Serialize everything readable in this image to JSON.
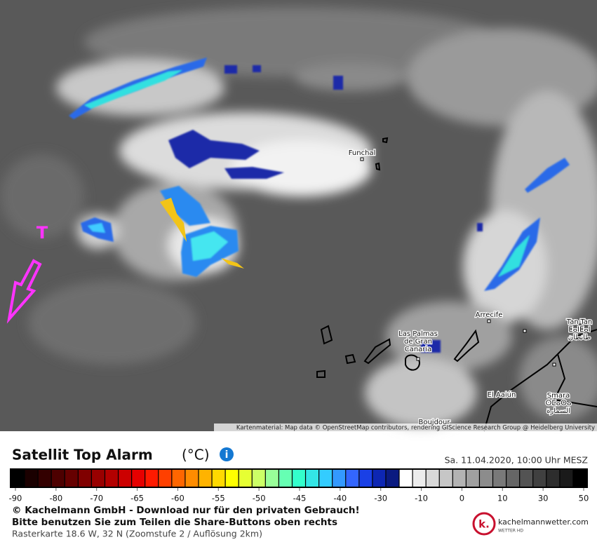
{
  "map": {
    "places": [
      [
        "Funchal"
      ],
      [
        "Las Palmas",
        "de Gran",
        "Canaria"
      ],
      [
        "Arrecife"
      ],
      [
        "Tan-Tan",
        "ⵟⴰⵏⵟⴰⵏ",
        "طانطان"
      ],
      [
        "El Aaiún"
      ],
      [
        "Smara",
        "ⵙⵎⴰⵔⴰ",
        "السمارة"
      ],
      [
        "Boujdour"
      ]
    ],
    "marker": "T",
    "attribution": "Kartenmaterial: Map data © OpenStreetMap contributors, rendering GIScience Research Group @ Heidelberg University"
  },
  "legend": {
    "title": "Satellit Top Alarm",
    "unit": "(°C)",
    "info_icon": "i",
    "date": "Sa. 11.04.2020, 10:00 Uhr MESZ",
    "range": [
      -90,
      50
    ],
    "ticks": [
      -90,
      -80,
      -70,
      -65,
      -60,
      -55,
      -50,
      -45,
      -40,
      -30,
      -10,
      0,
      10,
      30,
      50
    ],
    "colors": [
      "#000000",
      "#1a0000",
      "#330000",
      "#4d0000",
      "#660000",
      "#800000",
      "#990000",
      "#b30000",
      "#cc0000",
      "#e60000",
      "#ff1a00",
      "#ff4000",
      "#ff6600",
      "#ff8c00",
      "#ffb300",
      "#ffd900",
      "#ffff00",
      "#e6ff33",
      "#ccff66",
      "#99ff99",
      "#66ffb3",
      "#33ffcc",
      "#33e6e6",
      "#33ccff",
      "#3399ff",
      "#3366ff",
      "#1a40e6",
      "#0d26b3",
      "#0a1a80",
      "#ffffff",
      "#ececec",
      "#d9d9d9",
      "#c6c6c6",
      "#b3b3b3",
      "#a0a0a0",
      "#8c8c8c",
      "#797979",
      "#666666",
      "#535353",
      "#404040",
      "#2d2d2d",
      "#1a1a1a",
      "#000000"
    ]
  },
  "footer": {
    "copyright": "© Kachelmann GmbH - Download nur für den privaten Gebrauch!",
    "share": "Bitte benutzen Sie zum Teilen die Share-Buttons oben rechts",
    "raster": "Rasterkarte 18.6 W, 32 N (Zoomstufe 2 / Auflösung 2km)",
    "logo_mark": "k.",
    "logo_site": "kachelmannwetter.com",
    "logo_sub": "WETTER HD"
  }
}
